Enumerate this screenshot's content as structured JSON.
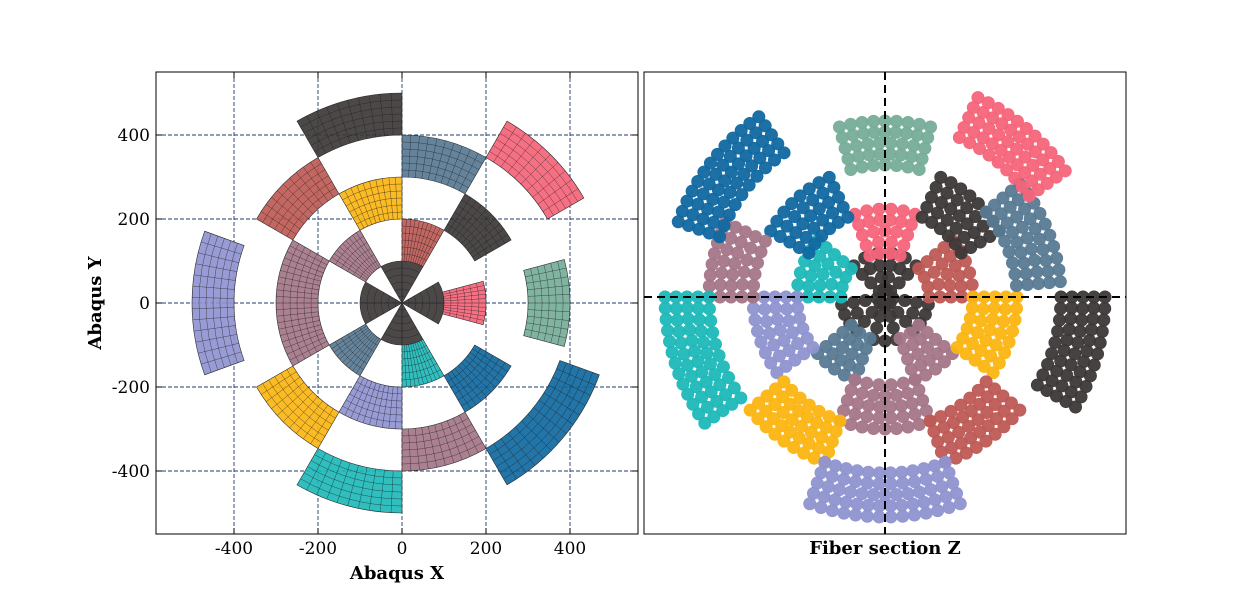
{
  "chart_data": [
    {
      "type": "mesh-section",
      "panel": "left",
      "xlabel": "Abaqus X",
      "ylabel": "Abaqus Y",
      "xlim": [
        -580,
        560
      ],
      "ylim": [
        -550,
        550
      ],
      "xticks": [
        -400,
        -200,
        0,
        200,
        400
      ],
      "yticks": [
        -400,
        -200,
        0,
        200,
        400
      ],
      "xtick_labels": [
        "-400",
        "-200",
        "0",
        "200",
        "400"
      ],
      "ytick_labels": [
        "-400",
        "-200",
        "0",
        "200",
        "400"
      ],
      "grid": true,
      "grid_color": "#1f3a6b",
      "sectors": [
        {
          "r0": 0,
          "r1": 100,
          "a0": 60,
          "a1": 90,
          "color": "#3d3838"
        },
        {
          "r0": 0,
          "r1": 100,
          "a0": 90,
          "a1": 120,
          "color": "#3d3838"
        },
        {
          "r0": 0,
          "r1": 100,
          "a0": 150,
          "a1": 180,
          "color": "#3d3838"
        },
        {
          "r0": 0,
          "r1": 100,
          "a0": 180,
          "a1": 210,
          "color": "#3d3838"
        },
        {
          "r0": 0,
          "r1": 100,
          "a0": 240,
          "a1": 270,
          "color": "#3d3838"
        },
        {
          "r0": 0,
          "r1": 100,
          "a0": 270,
          "a1": 300,
          "color": "#3d3838"
        },
        {
          "r0": 0,
          "r1": 100,
          "a0": 330,
          "a1": 360,
          "color": "#3d3838"
        },
        {
          "r0": 0,
          "r1": 100,
          "a0": 0,
          "a1": 30,
          "color": "#3d3838"
        },
        {
          "r0": 100,
          "r1": 200,
          "a0": 60,
          "a1": 90,
          "color": "#be5a55"
        },
        {
          "r0": 100,
          "r1": 200,
          "a0": 120,
          "a1": 150,
          "color": "#a47688"
        },
        {
          "r0": 100,
          "r1": 200,
          "a0": 210,
          "a1": 240,
          "color": "#587a94"
        },
        {
          "r0": 100,
          "r1": 200,
          "a0": 270,
          "a1": 300,
          "color": "#1eb8b8"
        },
        {
          "r0": 100,
          "r1": 200,
          "a0": 345,
          "a1": 375,
          "color": "#f56479"
        },
        {
          "r0": 200,
          "r1": 300,
          "a0": 30,
          "a1": 60,
          "color": "#3d3838"
        },
        {
          "r0": 200,
          "r1": 300,
          "a0": 90,
          "a1": 120,
          "color": "#fbb512"
        },
        {
          "r0": 200,
          "r1": 300,
          "a0": 150,
          "a1": 210,
          "color": "#a47688"
        },
        {
          "r0": 200,
          "r1": 300,
          "a0": 240,
          "a1": 270,
          "color": "#8f93d0"
        },
        {
          "r0": 200,
          "r1": 300,
          "a0": 300,
          "a1": 330,
          "color": "#1068a0"
        },
        {
          "r0": 300,
          "r1": 400,
          "a0": 60,
          "a1": 90,
          "color": "#587a94"
        },
        {
          "r0": 300,
          "r1": 400,
          "a0": 120,
          "a1": 150,
          "color": "#be5a55"
        },
        {
          "r0": 300,
          "r1": 400,
          "a0": 210,
          "a1": 240,
          "color": "#fbb512"
        },
        {
          "r0": 300,
          "r1": 400,
          "a0": 270,
          "a1": 300,
          "color": "#a47688"
        },
        {
          "r0": 300,
          "r1": 400,
          "a0": 345,
          "a1": 375,
          "color": "#76ad99"
        },
        {
          "r0": 400,
          "r1": 500,
          "a0": 90,
          "a1": 120,
          "color": "#3d3838"
        },
        {
          "r0": 400,
          "r1": 500,
          "a0": 30,
          "a1": 60,
          "color": "#f56479"
        },
        {
          "r0": 400,
          "r1": 500,
          "a0": 160,
          "a1": 200,
          "color": "#8f93d0"
        },
        {
          "r0": 400,
          "r1": 500,
          "a0": 240,
          "a1": 270,
          "color": "#1eb8b8"
        },
        {
          "r0": 400,
          "r1": 500,
          "a0": 300,
          "a1": 340,
          "color": "#1068a0"
        }
      ]
    },
    {
      "type": "scatter-section",
      "panel": "right",
      "xlabel": "Fiber section Z",
      "ylabel": "",
      "xlim": [
        -580,
        560
      ],
      "ylim": [
        -550,
        550
      ],
      "crosshair": {
        "x": 0,
        "y": 0
      },
      "sectors": [
        {
          "r0": 0,
          "r1": 100,
          "a0": 45,
          "a1": 80,
          "color": "#3d3838"
        },
        {
          "r0": 0,
          "r1": 100,
          "a0": 100,
          "a1": 135,
          "color": "#3d3838"
        },
        {
          "r0": 0,
          "r1": 100,
          "a0": 190,
          "a1": 230,
          "color": "#3d3838"
        },
        {
          "r0": 0,
          "r1": 100,
          "a0": 255,
          "a1": 285,
          "color": "#3d3838"
        },
        {
          "r0": 0,
          "r1": 100,
          "a0": 310,
          "a1": 350,
          "color": "#3d3838"
        },
        {
          "r0": 100,
          "r1": 200,
          "a0": 70,
          "a1": 110,
          "color": "#f56479"
        },
        {
          "r0": 100,
          "r1": 200,
          "a0": 140,
          "a1": 180,
          "color": "#1eb8b8"
        },
        {
          "r0": 100,
          "r1": 200,
          "a0": 0,
          "a1": 40,
          "color": "#be5a55"
        },
        {
          "r0": 100,
          "r1": 200,
          "a0": 220,
          "a1": 250,
          "color": "#587a94"
        },
        {
          "r0": 100,
          "r1": 200,
          "a0": 290,
          "a1": 320,
          "color": "#a47688"
        },
        {
          "r0": 200,
          "r1": 300,
          "a0": 115,
          "a1": 150,
          "color": "#1068a0"
        },
        {
          "r0": 200,
          "r1": 300,
          "a0": 30,
          "a1": 65,
          "color": "#3d3838"
        },
        {
          "r0": 200,
          "r1": 300,
          "a0": 180,
          "a1": 215,
          "color": "#8f93d0"
        },
        {
          "r0": 200,
          "r1": 300,
          "a0": 250,
          "a1": 290,
          "color": "#a47688"
        },
        {
          "r0": 200,
          "r1": 300,
          "a0": 325,
          "a1": 360,
          "color": "#fbb512"
        },
        {
          "r0": 300,
          "r1": 400,
          "a0": 75,
          "a1": 105,
          "color": "#76ad99"
        },
        {
          "r0": 300,
          "r1": 400,
          "a0": 155,
          "a1": 180,
          "color": "#a47688"
        },
        {
          "r0": 300,
          "r1": 400,
          "a0": 5,
          "a1": 40,
          "color": "#587a94"
        },
        {
          "r0": 300,
          "r1": 400,
          "a0": 220,
          "a1": 250,
          "color": "#fbb512"
        },
        {
          "r0": 300,
          "r1": 400,
          "a0": 290,
          "a1": 320,
          "color": "#be5a55"
        },
        {
          "r0": 400,
          "r1": 500,
          "a0": 125,
          "a1": 160,
          "color": "#1068a0"
        },
        {
          "r0": 400,
          "r1": 500,
          "a0": 35,
          "a1": 65,
          "color": "#f56479"
        },
        {
          "r0": 400,
          "r1": 500,
          "a0": 180,
          "a1": 215,
          "color": "#1eb8b8"
        },
        {
          "r0": 400,
          "r1": 500,
          "a0": 250,
          "a1": 290,
          "color": "#8f93d0"
        },
        {
          "r0": 400,
          "r1": 500,
          "a0": 330,
          "a1": 360,
          "color": "#3d3838"
        }
      ]
    }
  ]
}
